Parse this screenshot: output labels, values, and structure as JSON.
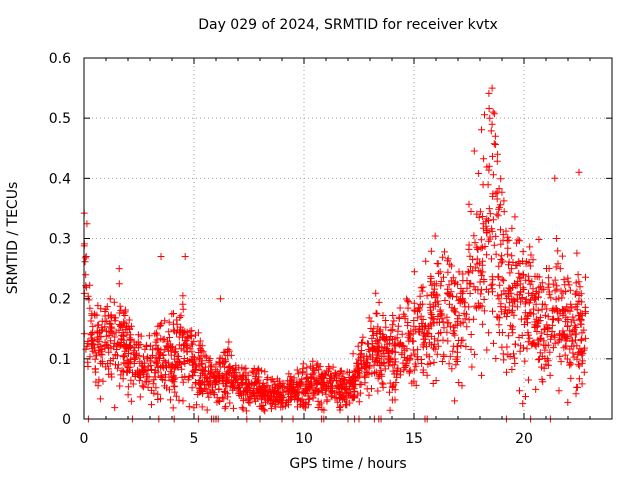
{
  "chart_data": {
    "type": "scatter",
    "title": "Day 029 of 2024, SRMTID for receiver kvtx",
    "xlabel": "GPS time / hours",
    "ylabel": "SRMTID / TECUs",
    "xlim": [
      0,
      24
    ],
    "ylim": [
      0,
      0.6
    ],
    "xticks": [
      0,
      5,
      10,
      15,
      20
    ],
    "yticks": [
      0,
      0.1,
      0.2,
      0.3,
      0.4,
      0.5,
      0.6
    ],
    "grid": true,
    "marker": "+",
    "color": "#ff0000",
    "trend": [
      {
        "x": 0.0,
        "y": 0.22
      },
      {
        "x": 0.3,
        "y": 0.14
      },
      {
        "x": 0.7,
        "y": 0.13
      },
      {
        "x": 1.2,
        "y": 0.12
      },
      {
        "x": 1.7,
        "y": 0.13
      },
      {
        "x": 2.0,
        "y": 0.1
      },
      {
        "x": 2.5,
        "y": 0.09
      },
      {
        "x": 3.0,
        "y": 0.08
      },
      {
        "x": 3.5,
        "y": 0.1
      },
      {
        "x": 4.0,
        "y": 0.1
      },
      {
        "x": 4.5,
        "y": 0.12
      },
      {
        "x": 5.0,
        "y": 0.09
      },
      {
        "x": 5.5,
        "y": 0.07
      },
      {
        "x": 6.0,
        "y": 0.06
      },
      {
        "x": 6.5,
        "y": 0.08
      },
      {
        "x": 7.0,
        "y": 0.06
      },
      {
        "x": 7.5,
        "y": 0.05
      },
      {
        "x": 8.0,
        "y": 0.05
      },
      {
        "x": 8.5,
        "y": 0.04
      },
      {
        "x": 9.0,
        "y": 0.04
      },
      {
        "x": 9.5,
        "y": 0.05
      },
      {
        "x": 10.0,
        "y": 0.05
      },
      {
        "x": 10.5,
        "y": 0.06
      },
      {
        "x": 11.0,
        "y": 0.06
      },
      {
        "x": 11.5,
        "y": 0.05
      },
      {
        "x": 12.0,
        "y": 0.05
      },
      {
        "x": 12.5,
        "y": 0.08
      },
      {
        "x": 13.0,
        "y": 0.1
      },
      {
        "x": 13.5,
        "y": 0.12
      },
      {
        "x": 14.0,
        "y": 0.11
      },
      {
        "x": 14.5,
        "y": 0.12
      },
      {
        "x": 15.0,
        "y": 0.13
      },
      {
        "x": 15.5,
        "y": 0.15
      },
      {
        "x": 16.0,
        "y": 0.17
      },
      {
        "x": 16.5,
        "y": 0.18
      },
      {
        "x": 17.0,
        "y": 0.15
      },
      {
        "x": 17.5,
        "y": 0.2
      },
      {
        "x": 18.0,
        "y": 0.28
      },
      {
        "x": 18.4,
        "y": 0.34
      },
      {
        "x": 18.8,
        "y": 0.32
      },
      {
        "x": 19.0,
        "y": 0.22
      },
      {
        "x": 19.5,
        "y": 0.2
      },
      {
        "x": 20.0,
        "y": 0.19
      },
      {
        "x": 20.5,
        "y": 0.17
      },
      {
        "x": 21.0,
        "y": 0.14
      },
      {
        "x": 21.5,
        "y": 0.17
      },
      {
        "x": 22.0,
        "y": 0.14
      },
      {
        "x": 22.5,
        "y": 0.16
      },
      {
        "x": 22.8,
        "y": 0.12
      }
    ],
    "outliers": [
      {
        "x": 18.55,
        "y": 0.55
      },
      {
        "x": 18.6,
        "y": 0.51
      },
      {
        "x": 18.55,
        "y": 0.49
      },
      {
        "x": 18.7,
        "y": 0.47
      },
      {
        "x": 18.8,
        "y": 0.44
      },
      {
        "x": 22.5,
        "y": 0.41
      },
      {
        "x": 21.4,
        "y": 0.4
      },
      {
        "x": 3.5,
        "y": 0.27
      },
      {
        "x": 4.6,
        "y": 0.27
      },
      {
        "x": 0.1,
        "y": 0.27
      },
      {
        "x": 1.6,
        "y": 0.25
      },
      {
        "x": 6.2,
        "y": 0.2
      }
    ],
    "zeros_x": [
      0.2,
      2.2,
      3.4,
      4.1,
      5.2,
      5.8,
      5.9,
      6.0,
      6.1,
      7.4,
      8.0,
      9.0,
      9.5,
      10.8,
      10.9,
      12.0,
      12.3,
      12.5,
      13.2,
      13.4,
      13.5,
      15.5,
      15.6,
      19.2,
      20.3,
      21.2
    ]
  }
}
